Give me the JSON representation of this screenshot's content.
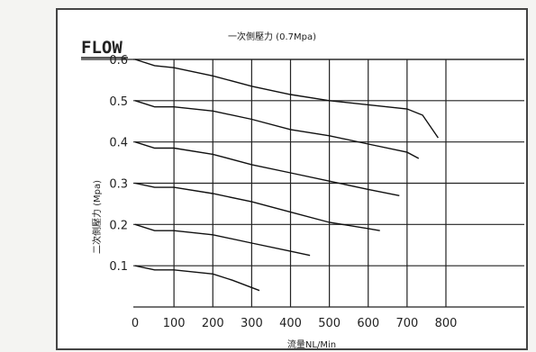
{
  "chart_data": {
    "type": "line",
    "title": "FLOW",
    "subtitle": "一次側壓力 (0.7Mpa)",
    "xlabel": "流量NL/Min",
    "ylabel": "二次側壓力 (Mpa)",
    "xlim": [
      0,
      800
    ],
    "ylim": [
      0,
      0.6
    ],
    "xticks": [
      "0",
      "100",
      "200",
      "300",
      "400",
      "500",
      "600",
      "700",
      "800"
    ],
    "yticks": [
      "0.1",
      "0.2",
      "0.3",
      "0.4",
      "0.5",
      "0.6"
    ],
    "grid": true,
    "series": [
      {
        "x": [
          0,
          50,
          100,
          200,
          300,
          400,
          500,
          600,
          700,
          740,
          780
        ],
        "y": [
          0.6,
          0.585,
          0.58,
          0.56,
          0.535,
          0.515,
          0.5,
          0.49,
          0.48,
          0.465,
          0.41
        ]
      },
      {
        "x": [
          0,
          50,
          100,
          200,
          300,
          400,
          500,
          600,
          700,
          730
        ],
        "y": [
          0.5,
          0.485,
          0.485,
          0.475,
          0.455,
          0.43,
          0.415,
          0.395,
          0.375,
          0.36
        ]
      },
      {
        "x": [
          0,
          50,
          100,
          200,
          300,
          400,
          500,
          600,
          680
        ],
        "y": [
          0.4,
          0.385,
          0.385,
          0.37,
          0.345,
          0.325,
          0.305,
          0.285,
          0.27
        ]
      },
      {
        "x": [
          0,
          50,
          100,
          200,
          300,
          400,
          500,
          600,
          630
        ],
        "y": [
          0.3,
          0.29,
          0.29,
          0.275,
          0.255,
          0.23,
          0.205,
          0.19,
          0.185
        ]
      },
      {
        "x": [
          0,
          50,
          100,
          200,
          300,
          400,
          450
        ],
        "y": [
          0.2,
          0.185,
          0.185,
          0.175,
          0.155,
          0.135,
          0.125
        ]
      },
      {
        "x": [
          0,
          50,
          100,
          200,
          250,
          320
        ],
        "y": [
          0.1,
          0.09,
          0.09,
          0.08,
          0.065,
          0.04
        ]
      }
    ]
  }
}
